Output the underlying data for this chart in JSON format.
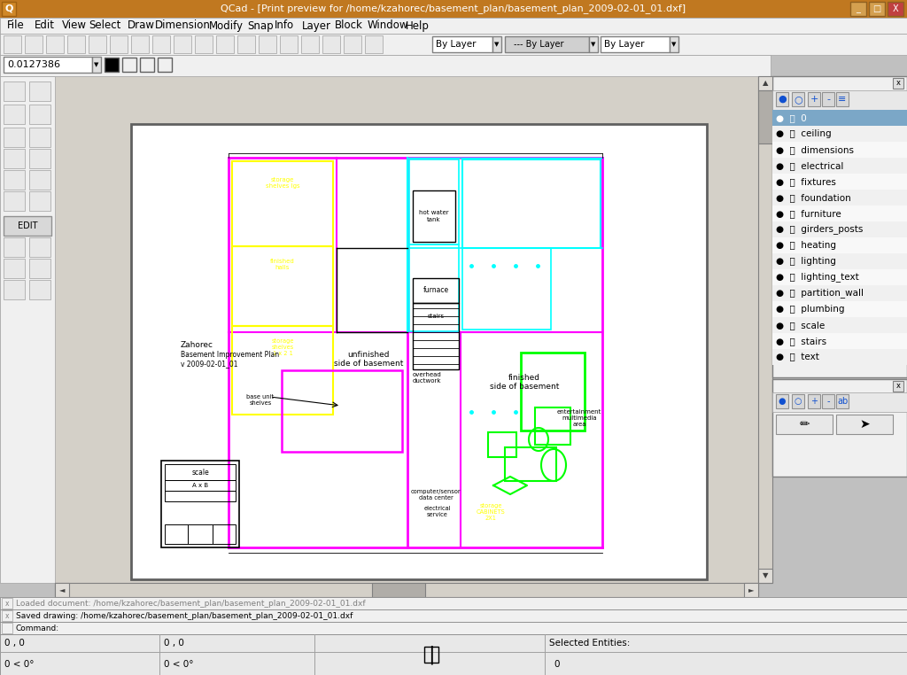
{
  "title_bar": "QCad - [Print preview for /home/kzahorec/basement_plan/basement_plan_2009-02-01_01.dxf]",
  "title_bar_color": "#c07820",
  "title_bar_text_color": "#ffffff",
  "menu_items": [
    "File",
    "Edit",
    "View",
    "Select",
    "Draw",
    "Dimension",
    "Modify",
    "Snap",
    "Info",
    "Layer",
    "Block",
    "Window",
    "Help"
  ],
  "bg_color": "#c0c0c0",
  "canvas_bg": "#d4d0c8",
  "paper_bg": "#ffffff",
  "layer_highlight": "#7ba7c7",
  "layers": [
    "0",
    "ceiling",
    "dimensions",
    "electrical",
    "fixtures",
    "foundation",
    "furniture",
    "girders_posts",
    "heating",
    "lighting",
    "lighting_text",
    "partition_wall",
    "plumbing",
    "scale",
    "stairs",
    "text"
  ],
  "status_bar_texts": [
    "Loaded document: /home/kzahorec/basement_plan/basement_plan_2009-02-01_01.dxf",
    "Saved drawing: /home/kzahorec/basement_plan/basement_plan_2009-02-01_01.dxf",
    "Command:"
  ],
  "zoom_value": "0.0127386",
  "drawing_colors": {
    "magenta": "#ff00ff",
    "cyan": "#00ffff",
    "yellow": "#ffff00",
    "green": "#00ff00",
    "red": "#ff0000",
    "blue": "#0000ff",
    "white": "#ffffff",
    "black": "#000000",
    "gray": "#808080"
  },
  "layer_panel_icons": [
    [
      877,
      "+"
    ],
    [
      895,
      "-"
    ],
    [
      913,
      "+"
    ],
    [
      929,
      "-"
    ],
    [
      945,
      "="
    ]
  ],
  "layer_panel2_icons": [
    [
      877,
      "+"
    ],
    [
      895,
      "-"
    ],
    [
      913,
      "+"
    ],
    [
      929,
      "-"
    ],
    [
      945,
      "ab"
    ]
  ]
}
